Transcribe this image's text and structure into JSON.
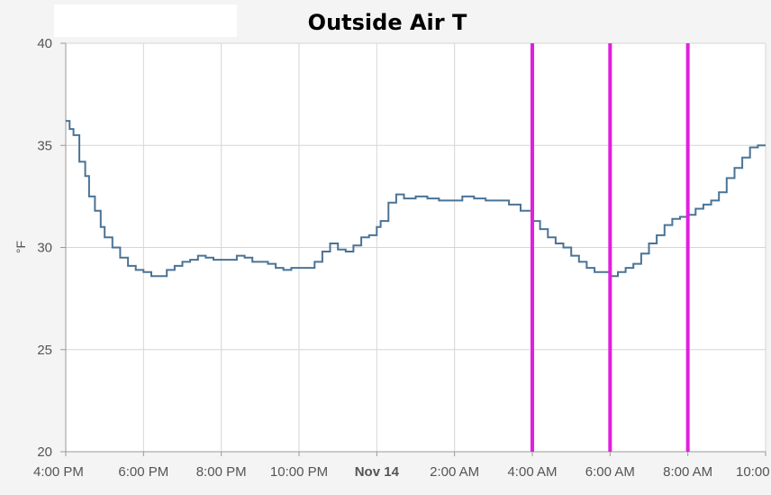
{
  "chart_data": {
    "type": "line",
    "title": "Outside Air T",
    "ylabel": "°F",
    "xlabel": "",
    "ylim": [
      20,
      40
    ],
    "xlim_hours": [
      0,
      18
    ],
    "yticks": [
      20,
      25,
      30,
      35,
      40
    ],
    "xticks": [
      {
        "hour": 0,
        "label": "4:00 PM",
        "bold": false
      },
      {
        "hour": 2,
        "label": "6:00 PM",
        "bold": false
      },
      {
        "hour": 4,
        "label": "8:00 PM",
        "bold": false
      },
      {
        "hour": 6,
        "label": "10:00 PM",
        "bold": false
      },
      {
        "hour": 8,
        "label": "Nov 14",
        "bold": true
      },
      {
        "hour": 10,
        "label": "2:00 AM",
        "bold": false
      },
      {
        "hour": 12,
        "label": "4:00 AM",
        "bold": false
      },
      {
        "hour": 14,
        "label": "6:00 AM",
        "bold": false
      },
      {
        "hour": 16,
        "label": "8:00 AM",
        "bold": false
      },
      {
        "hour": 18,
        "label": "10:00 AM",
        "bold": false
      }
    ],
    "grid": true,
    "series": [
      {
        "name": "",
        "color": "#4a7396",
        "points": [
          [
            0.0,
            36.2
          ],
          [
            0.1,
            35.8
          ],
          [
            0.2,
            35.5
          ],
          [
            0.35,
            34.2
          ],
          [
            0.5,
            33.5
          ],
          [
            0.6,
            32.5
          ],
          [
            0.75,
            31.8
          ],
          [
            0.9,
            31.0
          ],
          [
            1.0,
            30.5
          ],
          [
            1.2,
            30.0
          ],
          [
            1.4,
            29.5
          ],
          [
            1.6,
            29.1
          ],
          [
            1.8,
            28.9
          ],
          [
            2.0,
            28.8
          ],
          [
            2.2,
            28.6
          ],
          [
            2.4,
            28.6
          ],
          [
            2.6,
            28.9
          ],
          [
            2.8,
            29.1
          ],
          [
            3.0,
            29.3
          ],
          [
            3.2,
            29.4
          ],
          [
            3.4,
            29.6
          ],
          [
            3.6,
            29.5
          ],
          [
            3.8,
            29.4
          ],
          [
            4.0,
            29.4
          ],
          [
            4.2,
            29.4
          ],
          [
            4.4,
            29.6
          ],
          [
            4.6,
            29.5
          ],
          [
            4.8,
            29.3
          ],
          [
            5.0,
            29.3
          ],
          [
            5.2,
            29.2
          ],
          [
            5.4,
            29.0
          ],
          [
            5.6,
            28.9
          ],
          [
            5.8,
            29.0
          ],
          [
            6.0,
            29.0
          ],
          [
            6.2,
            29.0
          ],
          [
            6.4,
            29.3
          ],
          [
            6.6,
            29.8
          ],
          [
            6.8,
            30.2
          ],
          [
            7.0,
            29.9
          ],
          [
            7.2,
            29.8
          ],
          [
            7.4,
            30.1
          ],
          [
            7.6,
            30.5
          ],
          [
            7.8,
            30.6
          ],
          [
            8.0,
            31.0
          ],
          [
            8.1,
            31.3
          ],
          [
            8.3,
            32.2
          ],
          [
            8.5,
            32.6
          ],
          [
            8.7,
            32.4
          ],
          [
            9.0,
            32.5
          ],
          [
            9.3,
            32.4
          ],
          [
            9.6,
            32.3
          ],
          [
            9.9,
            32.3
          ],
          [
            10.2,
            32.5
          ],
          [
            10.5,
            32.4
          ],
          [
            10.8,
            32.3
          ],
          [
            11.1,
            32.3
          ],
          [
            11.4,
            32.1
          ],
          [
            11.7,
            31.8
          ],
          [
            12.0,
            31.3
          ],
          [
            12.2,
            30.9
          ],
          [
            12.4,
            30.5
          ],
          [
            12.6,
            30.2
          ],
          [
            12.8,
            30.0
          ],
          [
            13.0,
            29.6
          ],
          [
            13.2,
            29.3
          ],
          [
            13.4,
            29.0
          ],
          [
            13.6,
            28.8
          ],
          [
            13.8,
            28.8
          ],
          [
            14.0,
            28.6
          ],
          [
            14.2,
            28.8
          ],
          [
            14.4,
            29.0
          ],
          [
            14.6,
            29.2
          ],
          [
            14.8,
            29.7
          ],
          [
            15.0,
            30.2
          ],
          [
            15.2,
            30.6
          ],
          [
            15.4,
            31.1
          ],
          [
            15.6,
            31.4
          ],
          [
            15.8,
            31.5
          ],
          [
            16.0,
            31.6
          ],
          [
            16.2,
            31.9
          ],
          [
            16.4,
            32.1
          ],
          [
            16.6,
            32.3
          ],
          [
            16.8,
            32.7
          ],
          [
            17.0,
            33.4
          ],
          [
            17.2,
            33.9
          ],
          [
            17.4,
            34.4
          ],
          [
            17.6,
            34.9
          ],
          [
            17.8,
            35.0
          ],
          [
            18.0,
            35.0
          ]
        ]
      }
    ],
    "markers": [
      {
        "hour": 12.0,
        "color": "#e11ee1"
      },
      {
        "hour": 14.0,
        "color": "#e11ee1"
      },
      {
        "hour": 16.0,
        "color": "#e11ee1"
      }
    ]
  }
}
